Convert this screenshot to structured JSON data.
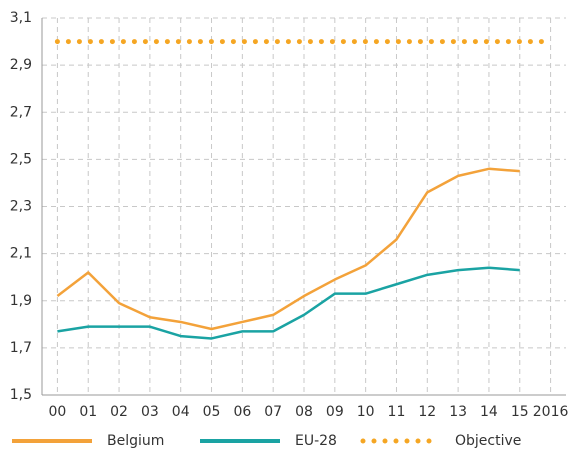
{
  "chart_data": {
    "type": "line",
    "categories": [
      "00",
      "01",
      "02",
      "03",
      "04",
      "05",
      "06",
      "07",
      "08",
      "09",
      "10",
      "11",
      "12",
      "13",
      "14",
      "15",
      "2016"
    ],
    "series": [
      {
        "name": "Belgium",
        "color": "#f3a23a",
        "values": [
          1.92,
          2.02,
          1.89,
          1.83,
          1.81,
          1.78,
          1.81,
          1.84,
          1.92,
          1.99,
          2.05,
          2.16,
          2.36,
          2.43,
          2.46,
          2.45,
          null
        ]
      },
      {
        "name": "EU-28",
        "color": "#1aa3a3",
        "values": [
          1.77,
          1.79,
          1.79,
          1.79,
          1.75,
          1.74,
          1.77,
          1.77,
          1.84,
          1.93,
          1.93,
          1.97,
          2.01,
          2.03,
          2.04,
          2.03,
          null
        ]
      },
      {
        "name": "Objective",
        "color": "#f5a623",
        "dotted": true,
        "values": [
          3,
          3,
          3,
          3,
          3,
          3,
          3,
          3,
          3,
          3,
          3,
          3,
          3,
          3,
          3,
          3,
          3
        ]
      }
    ],
    "ylim": [
      1.5,
      3.1
    ],
    "yticks": [
      {
        "value": 1.5,
        "label": "1,5"
      },
      {
        "value": 1.7,
        "label": "1,7"
      },
      {
        "value": 1.9,
        "label": "1,9"
      },
      {
        "value": 2.1,
        "label": "2,1"
      },
      {
        "value": 2.3,
        "label": "2,3"
      },
      {
        "value": 2.5,
        "label": "2,5"
      },
      {
        "value": 2.7,
        "label": "2,7"
      },
      {
        "value": 2.9,
        "label": "2,9"
      },
      {
        "value": 3.1,
        "label": "3,1"
      }
    ],
    "grid": true,
    "legend": "bottom"
  }
}
